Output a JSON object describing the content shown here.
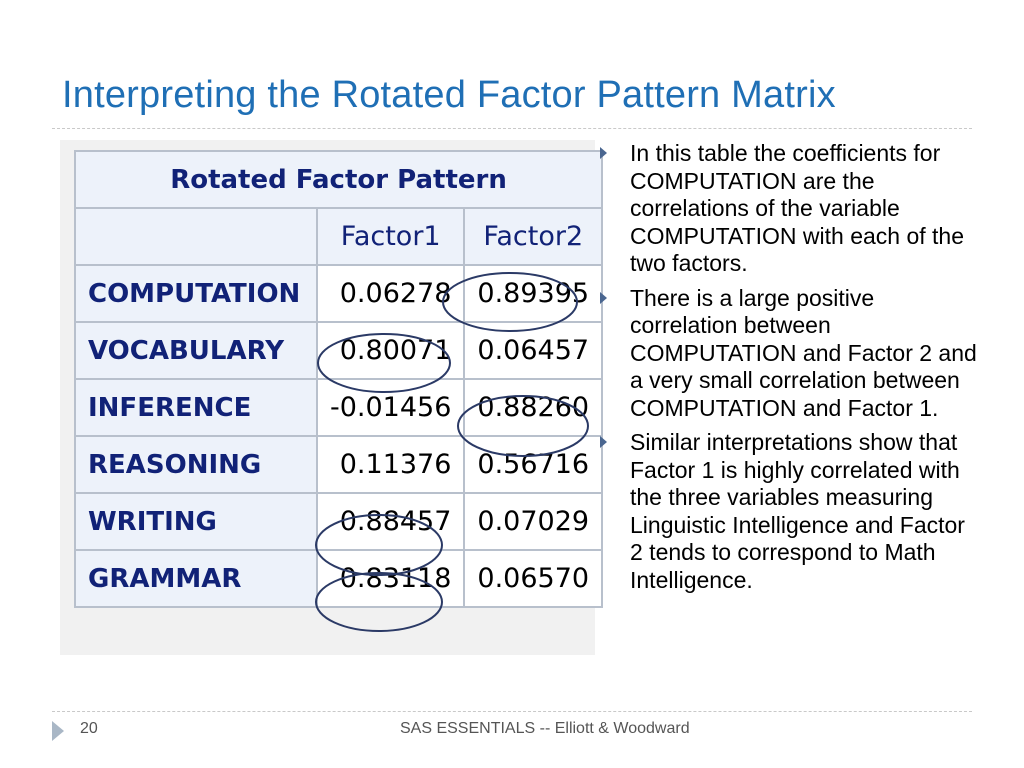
{
  "slide": {
    "title": "Interpreting the Rotated Factor Pattern Matrix",
    "page_number": "20",
    "footer": "SAS ESSENTIALS -- Elliott & Woodward"
  },
  "table": {
    "caption": "Rotated Factor Pattern",
    "columns": [
      "Factor1",
      "Factor2"
    ],
    "rows": [
      {
        "name": "COMPUTATION",
        "factor1": "0.06278",
        "factor2": "0.89395",
        "circled": "factor2"
      },
      {
        "name": "VOCABULARY",
        "factor1": "0.80071",
        "factor2": "0.06457",
        "circled": "factor1"
      },
      {
        "name": "INFERENCE",
        "factor1": "-0.01456",
        "factor2": "0.88260",
        "circled": "factor2"
      },
      {
        "name": "REASONING",
        "factor1": "0.11376",
        "factor2": "0.56716",
        "circled": ""
      },
      {
        "name": "WRITING",
        "factor1": "0.88457",
        "factor2": "0.07029",
        "circled": "factor1"
      },
      {
        "name": "GRAMMAR",
        "factor1": "0.83118",
        "factor2": "0.06570",
        "circled": "factor1"
      }
    ]
  },
  "bullets": [
    "In this table the coefficients for COMPUTATION are the correlations of the variable COMPUTATION with each of the two factors.",
    "There is a large positive correlation between COMPUTATION and Factor 2 and a very small correlation between COMPUTATION and Factor 1.",
    "Similar interpretations show that Factor 1 is highly correlated with the three variables measuring Linguistic Intelligence and Factor 2 tends to correspond to Math Intelligence."
  ],
  "colors": {
    "title": "#1f6fb5",
    "table_header_text": "#112277",
    "table_header_bg": "#edf2fa",
    "oval_stroke": "#2b3a66",
    "bullet_arrow": "#4a6690"
  }
}
